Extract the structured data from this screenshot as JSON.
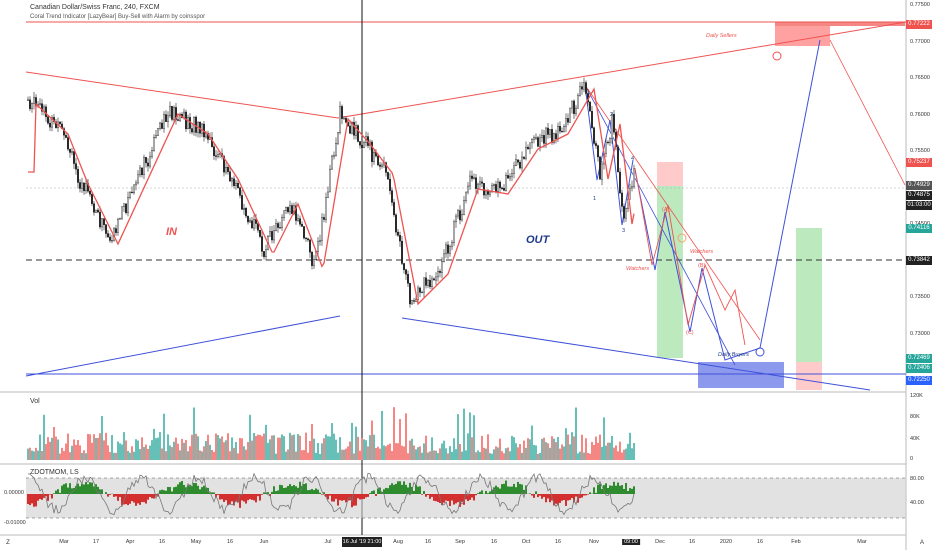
{
  "header": {
    "title": "Canadian Dollar/Swiss Franc, 240, FXCM",
    "indicator": "Coral Trend Indicator [LazyBear] Buy-Sell with Alarm by coinsspor"
  },
  "annotations": {
    "in_label": "IN",
    "out_label": "OUT",
    "daily_sellers": "Daily Sellers",
    "daily_buyers": "Daily Buyers",
    "watchers_1": "Watchers",
    "watchers_2": "Watchers",
    "wave_1": "1",
    "wave_2": "2",
    "wave_3": "3",
    "wave_4": "4",
    "wave_a": "(A)",
    "wave_b": "(B)",
    "wave_c": "(C)"
  },
  "panes": {
    "volume_label": "Vol",
    "osc_label": "ZDOTMOM, LS"
  },
  "price_axis": {
    "ticks": [
      "0.77500",
      "0.77000",
      "0.76500",
      "0.76000",
      "0.75500",
      "0.75000",
      "0.74500",
      "0.74000",
      "0.73500",
      "0.73000",
      "0.72500"
    ],
    "tags": [
      {
        "label": "0.77222",
        "color": "#ef5350"
      },
      {
        "label": "0.75237",
        "color": "#ef5350"
      },
      {
        "label": "0.74929",
        "color": "#555555"
      },
      {
        "label": "0.74875",
        "color": "#222222"
      },
      {
        "label": "01:03:00",
        "color": "#222222"
      },
      {
        "label": "0.74116",
        "color": "#26a69a"
      },
      {
        "label": "0.73842",
        "color": "#222222"
      },
      {
        "label": "0.72469",
        "color": "#26a69a"
      },
      {
        "label": "0.72406",
        "color": "#26a69a"
      },
      {
        "label": "0.72250",
        "color": "#2962ff"
      }
    ]
  },
  "volume_axis": {
    "ticks": [
      "120K",
      "80K",
      "40K",
      "0"
    ]
  },
  "osc_axis": {
    "ticks": [
      "80.00",
      "40.00"
    ],
    "left_ticks": [
      "0.00000",
      "-0.01000"
    ]
  },
  "time_axis": {
    "labels": [
      "Mar",
      "17",
      "Apr",
      "16",
      "May",
      "16",
      "Jun",
      "Jul",
      "Aug",
      "16",
      "Sep",
      "16",
      "Oct",
      "16",
      "Nov",
      "Dec",
      "16",
      "2020",
      "16",
      "Feb",
      "Mar"
    ],
    "crosshair": "16 Jul '19   21:00",
    "cursor_time": "09:00"
  },
  "toolbar": {
    "left_btn": "Z",
    "right_btn": "A"
  },
  "colors": {
    "red_line": "#ef5350",
    "blue_line": "#3f51d9",
    "candle_up": "#26a69a",
    "candle_down": "#ef5350",
    "sell_zone": "#ff8a8a",
    "buy_zone": "#6f7fe8"
  }
}
